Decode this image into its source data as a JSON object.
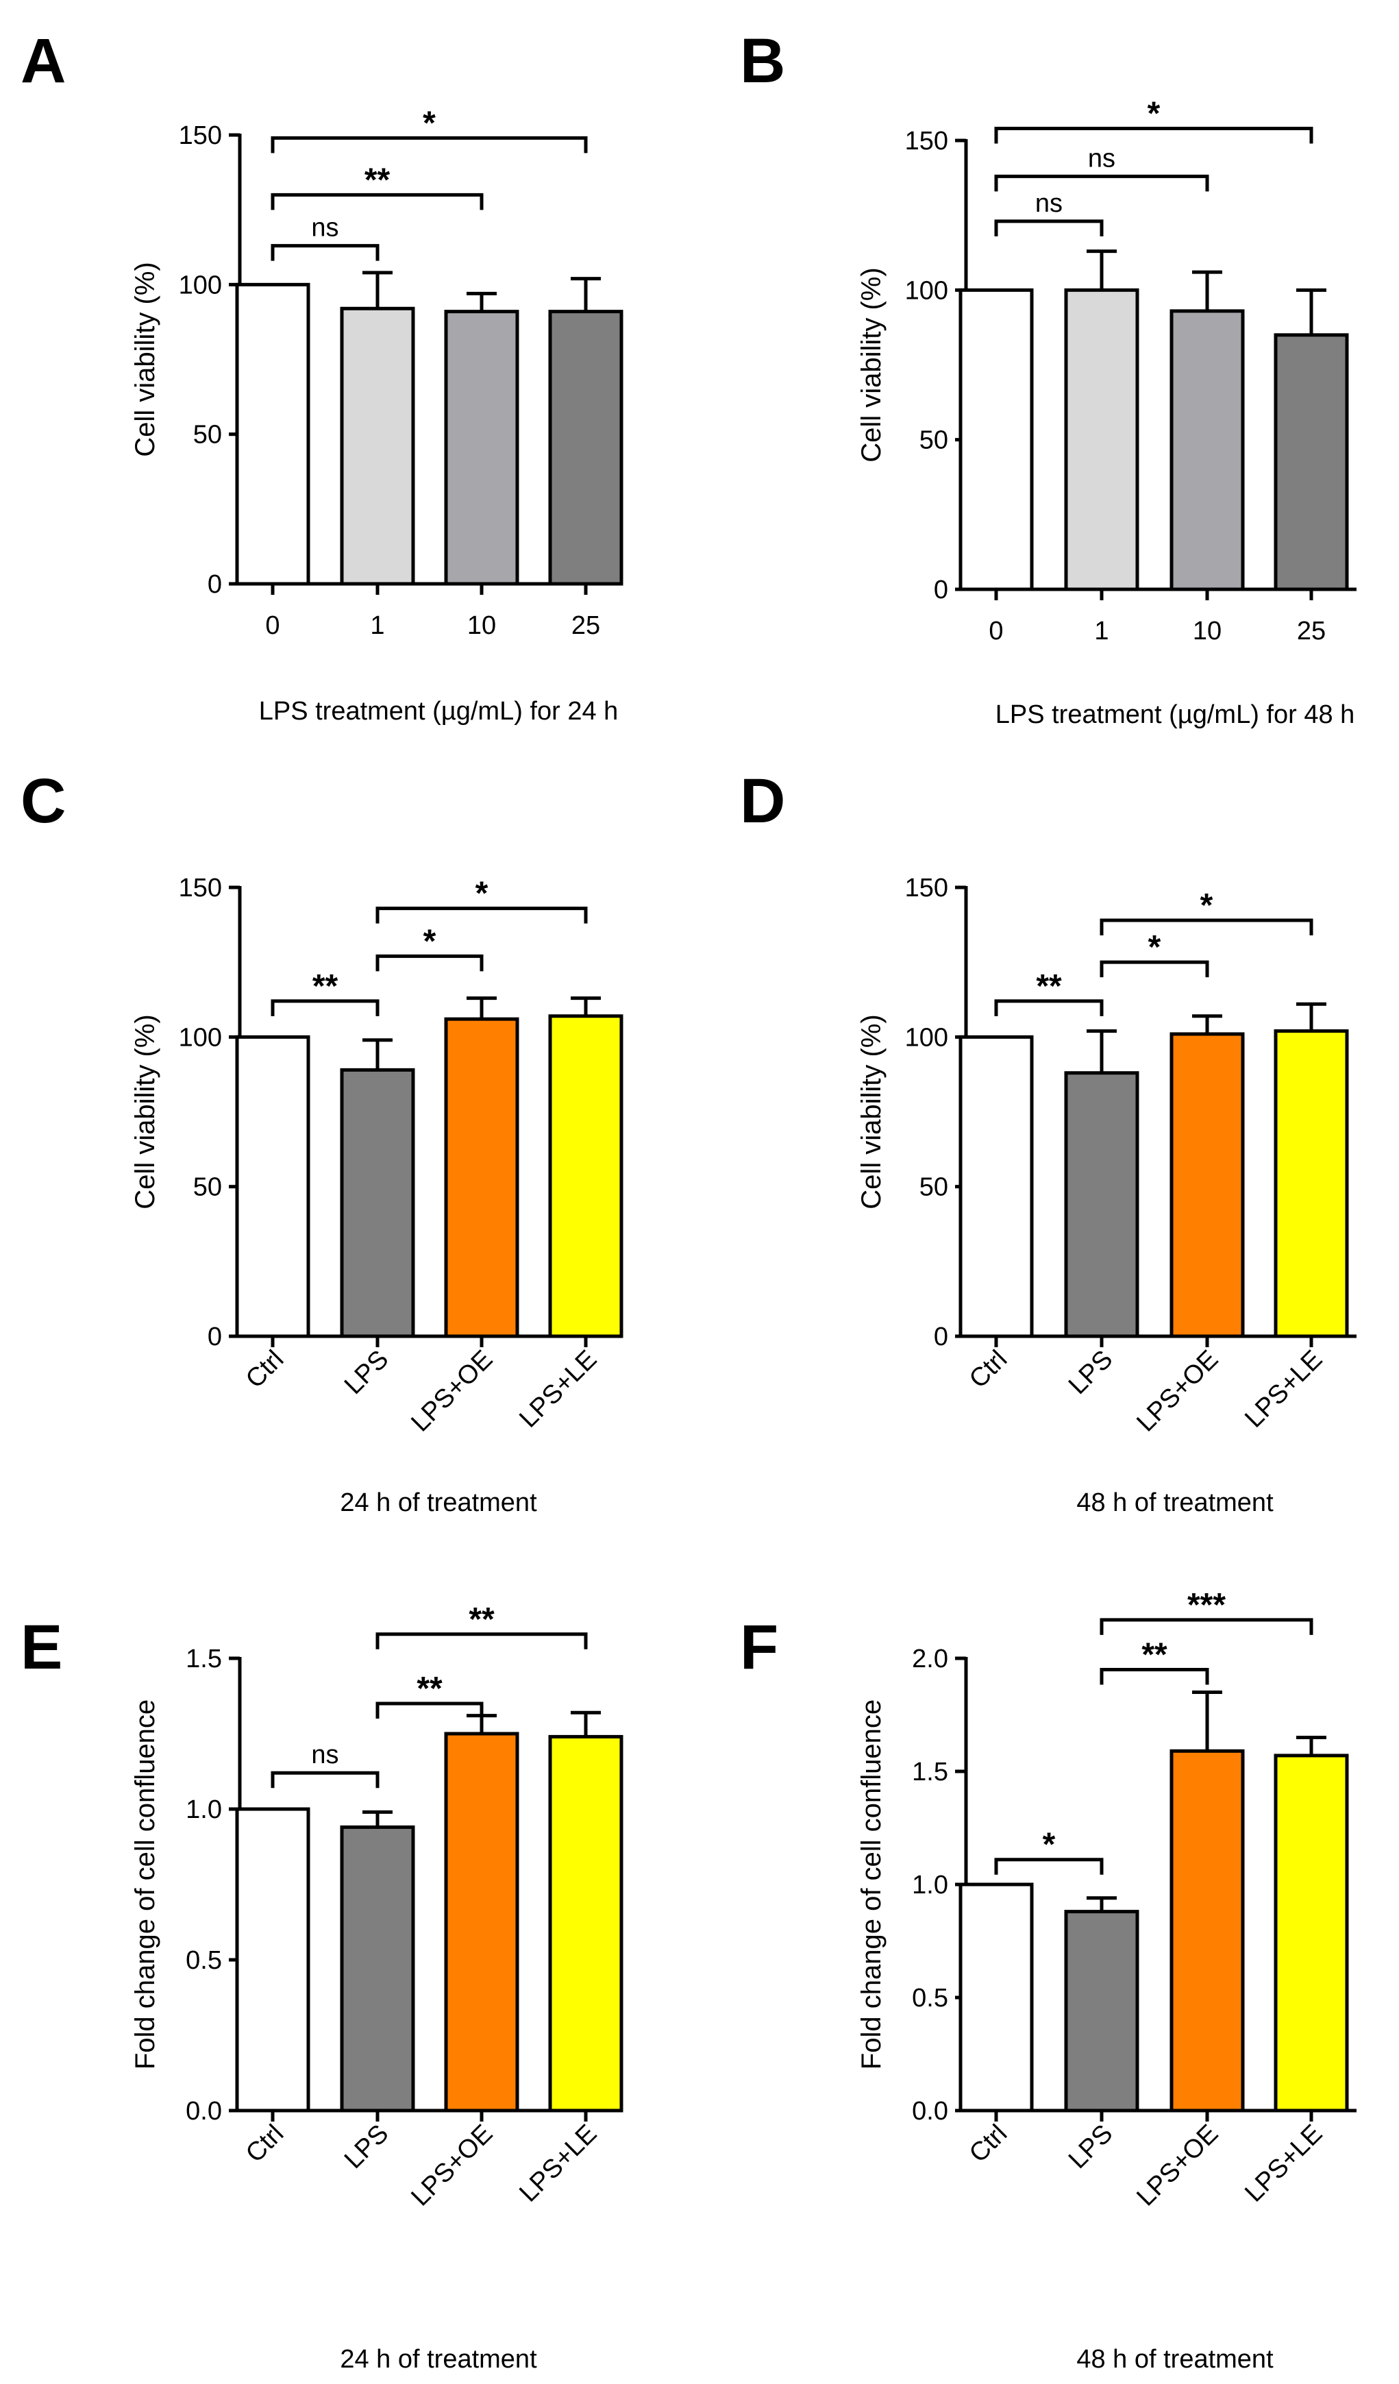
{
  "figure": {
    "panels": [
      "A",
      "B",
      "C",
      "D",
      "E",
      "F"
    ]
  },
  "colors": {
    "white": "#ffffff",
    "light_gray": "#d9d9d9",
    "mid_gray": "#a6a6ab",
    "dark_gray": "#7f7f7f",
    "orange": "#ff8000",
    "yellow": "#ffff00",
    "ink": "#000000"
  },
  "chart_data": [
    {
      "panel": "A",
      "type": "bar",
      "categories": [
        "0",
        "1",
        "10",
        "25"
      ],
      "values": [
        100,
        92,
        91,
        91
      ],
      "errors": [
        0,
        12,
        6,
        11
      ],
      "bar_colors": [
        "white",
        "light_gray",
        "mid_gray",
        "dark_gray"
      ],
      "ylabel": "Cell viability (%)",
      "xlabel": "LPS treatment (µg/mL) for 24 h",
      "ylim": [
        0,
        150
      ],
      "yticks": [
        0,
        50,
        100,
        150
      ],
      "rotate_ticks": false,
      "significance": [
        {
          "from": 0,
          "to": 1,
          "label": "ns",
          "y": 113
        },
        {
          "from": 0,
          "to": 2,
          "label": "**",
          "y": 130
        },
        {
          "from": 0,
          "to": 3,
          "label": "*",
          "y": 149
        }
      ]
    },
    {
      "panel": "B",
      "type": "bar",
      "categories": [
        "0",
        "1",
        "10",
        "25"
      ],
      "values": [
        100,
        100,
        93,
        85
      ],
      "errors": [
        0,
        13,
        13,
        15
      ],
      "bar_colors": [
        "white",
        "light_gray",
        "mid_gray",
        "dark_gray"
      ],
      "ylabel": "Cell viability (%)",
      "xlabel": "LPS treatment (µg/mL) for 48 h",
      "ylim": [
        0,
        150
      ],
      "yticks": [
        0,
        50,
        100,
        150
      ],
      "rotate_ticks": false,
      "significance": [
        {
          "from": 0,
          "to": 1,
          "label": "ns",
          "y": 123
        },
        {
          "from": 0,
          "to": 2,
          "label": "ns",
          "y": 138
        },
        {
          "from": 0,
          "to": 3,
          "label": "*",
          "y": 154
        }
      ]
    },
    {
      "panel": "C",
      "type": "bar",
      "categories": [
        "Ctrl",
        "LPS",
        "LPS+OE",
        "LPS+LE"
      ],
      "values": [
        100,
        89,
        106,
        107
      ],
      "errors": [
        0,
        10,
        7,
        6
      ],
      "bar_colors": [
        "white",
        "dark_gray",
        "orange",
        "yellow"
      ],
      "ylabel": "Cell viability (%)",
      "xlabel": "24 h of treatment",
      "ylim": [
        0,
        150
      ],
      "yticks": [
        0,
        50,
        100,
        150
      ],
      "rotate_ticks": true,
      "significance": [
        {
          "from": 0,
          "to": 1,
          "label": "**",
          "y": 112
        },
        {
          "from": 1,
          "to": 2,
          "label": "*",
          "y": 127
        },
        {
          "from": 1,
          "to": 3,
          "label": "*",
          "y": 143
        }
      ]
    },
    {
      "panel": "D",
      "type": "bar",
      "categories": [
        "Ctrl",
        "LPS",
        "LPS+OE",
        "LPS+LE"
      ],
      "values": [
        100,
        88,
        101,
        102
      ],
      "errors": [
        0,
        14,
        6,
        9
      ],
      "bar_colors": [
        "white",
        "dark_gray",
        "orange",
        "yellow"
      ],
      "ylabel": "Cell viability (%)",
      "xlabel": "48 h of treatment",
      "ylim": [
        0,
        150
      ],
      "yticks": [
        0,
        50,
        100,
        150
      ],
      "rotate_ticks": true,
      "significance": [
        {
          "from": 0,
          "to": 1,
          "label": "**",
          "y": 112
        },
        {
          "from": 1,
          "to": 2,
          "label": "*",
          "y": 125
        },
        {
          "from": 1,
          "to": 3,
          "label": "*",
          "y": 139
        }
      ]
    },
    {
      "panel": "E",
      "type": "bar",
      "categories": [
        "Ctrl",
        "LPS",
        "LPS+OE",
        "LPS+LE"
      ],
      "values": [
        1.0,
        0.94,
        1.25,
        1.24
      ],
      "errors": [
        0,
        0.05,
        0.06,
        0.08
      ],
      "bar_colors": [
        "white",
        "dark_gray",
        "orange",
        "yellow"
      ],
      "ylabel": "Fold change of cell confluence",
      "xlabel": "24 h of treatment",
      "ylim": [
        0,
        1.5
      ],
      "yticks": [
        "0.0",
        "0.5",
        "1.0",
        "1.5"
      ],
      "rotate_ticks": true,
      "significance": [
        {
          "from": 0,
          "to": 1,
          "label": "ns",
          "y": 1.12
        },
        {
          "from": 1,
          "to": 2,
          "label": "**",
          "y": 1.35
        },
        {
          "from": 1,
          "to": 3,
          "label": "**",
          "y": 1.58
        }
      ]
    },
    {
      "panel": "F",
      "type": "bar",
      "categories": [
        "Ctrl",
        "LPS",
        "LPS+OE",
        "LPS+LE"
      ],
      "values": [
        1.0,
        0.88,
        1.59,
        1.57
      ],
      "errors": [
        0,
        0.06,
        0.26,
        0.08
      ],
      "bar_colors": [
        "white",
        "dark_gray",
        "orange",
        "yellow"
      ],
      "ylabel": "Fold change of cell confluence",
      "xlabel": "48 h of treatment",
      "ylim": [
        0,
        2.0
      ],
      "yticks": [
        "0.0",
        "0.5",
        "1.0",
        "1.5",
        "2.0"
      ],
      "rotate_ticks": true,
      "significance": [
        {
          "from": 0,
          "to": 1,
          "label": "*",
          "y": 1.11
        },
        {
          "from": 1,
          "to": 2,
          "label": "**",
          "y": 1.95
        },
        {
          "from": 1,
          "to": 3,
          "label": "***",
          "y": 2.17
        }
      ]
    }
  ]
}
